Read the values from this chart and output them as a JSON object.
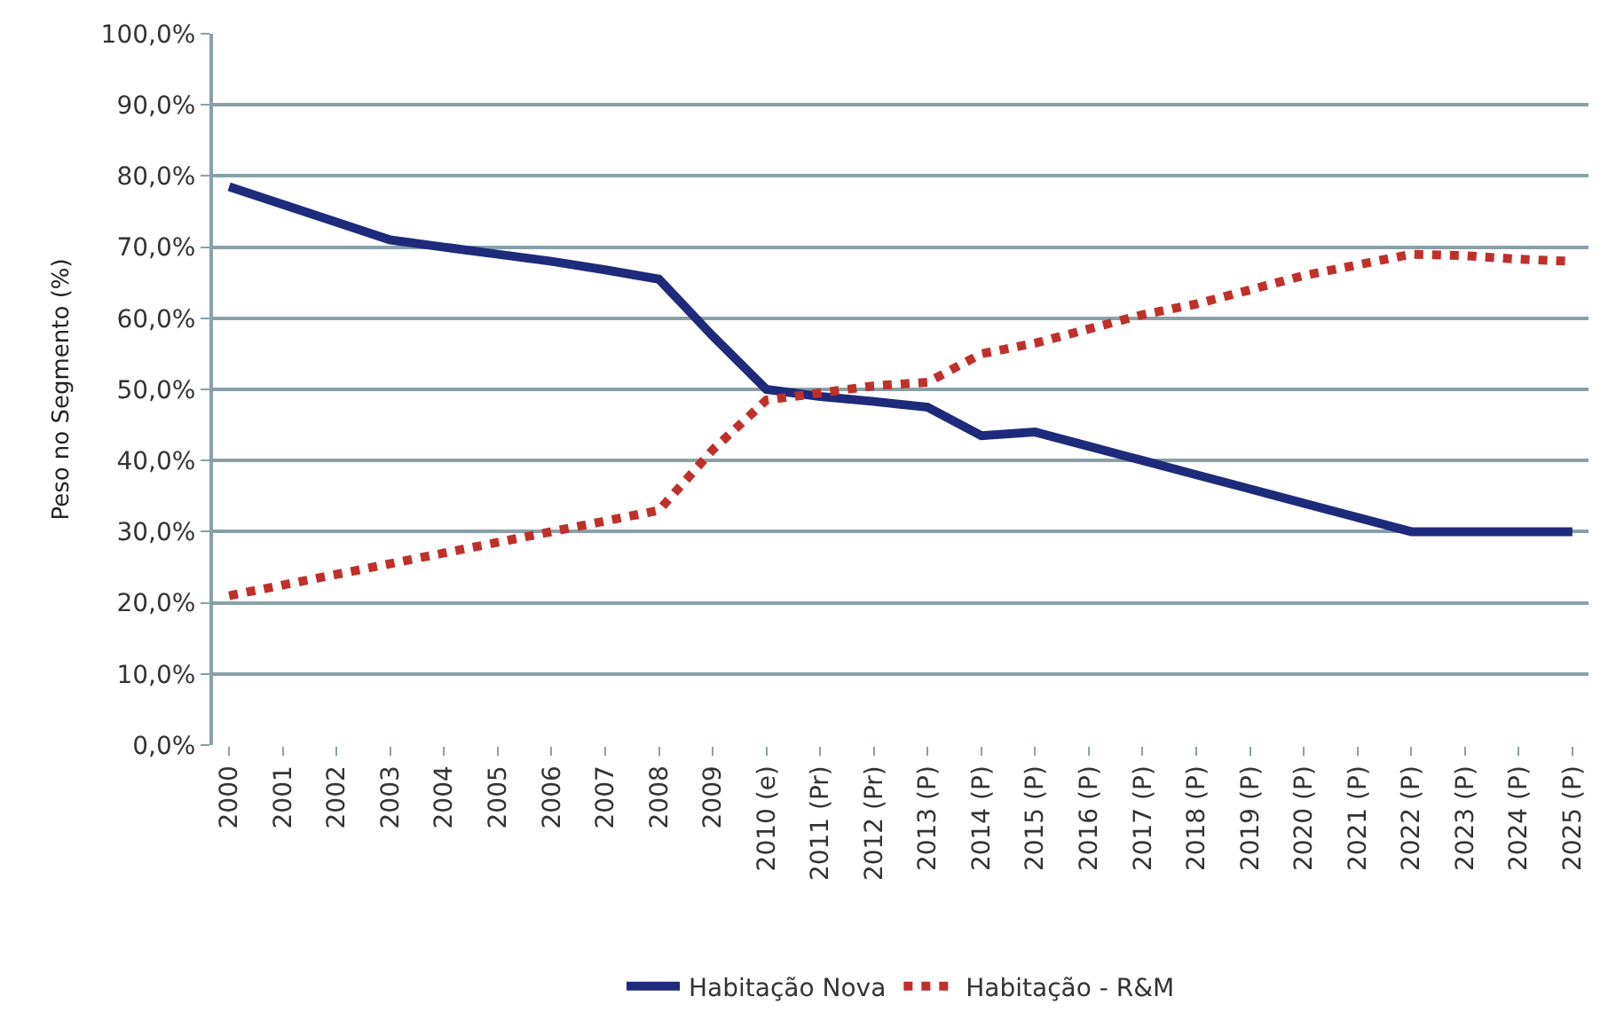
{
  "chart_data": {
    "type": "line",
    "ylabel": "Peso no Segmento (%)",
    "categories": [
      "2000",
      "2001",
      "2002",
      "2003",
      "2004",
      "2005",
      "2006",
      "2007",
      "2008",
      "2009",
      "2010 (e)",
      "2011 (Pr)",
      "2012 (Pr)",
      "2013 (P)",
      "2014 (P)",
      "2015 (P)",
      "2016 (P)",
      "2017 (P)",
      "2018 (P)",
      "2019 (P)",
      "2020 (P)",
      "2021 (P)",
      "2022 (P)",
      "2023 (P)",
      "2024 (P)",
      "2025 (P)"
    ],
    "series": [
      {
        "name": "Habitação Nova",
        "color": "#1f2a7a",
        "line_style": "solid",
        "values": [
          78.5,
          76,
          73.5,
          71,
          70,
          69,
          68,
          66.8,
          65.5,
          57.5,
          50,
          49,
          48.3,
          47.5,
          43.5,
          44,
          42,
          40,
          38,
          36,
          34,
          32,
          30,
          30,
          30,
          30
        ]
      },
      {
        "name": "Habitação - R&M",
        "color": "#c0302a",
        "line_style": "dotted",
        "values": [
          21,
          22.5,
          24,
          25.5,
          27,
          28.5,
          30,
          31.5,
          33,
          41.5,
          48.5,
          49.5,
          50.5,
          51,
          55,
          56.5,
          58.5,
          60.5,
          62,
          64,
          66,
          67.5,
          69,
          68.8,
          68.3,
          68
        ]
      }
    ],
    "ylim": [
      0,
      100
    ],
    "yticks": [
      {
        "value": 0,
        "label": "0,0%"
      },
      {
        "value": 10,
        "label": "10,0%"
      },
      {
        "value": 20,
        "label": "20,0%"
      },
      {
        "value": 30,
        "label": "30,0%"
      },
      {
        "value": 40,
        "label": "40,0%"
      },
      {
        "value": 50,
        "label": "50,0%"
      },
      {
        "value": 60,
        "label": "60,0%"
      },
      {
        "value": 70,
        "label": "70,0%"
      },
      {
        "value": 80,
        "label": "80,0%"
      },
      {
        "value": 90,
        "label": "90,0%"
      },
      {
        "value": 100,
        "label": "100,0%"
      }
    ],
    "grid": "y",
    "legend": "bottom",
    "marker": "none"
  }
}
